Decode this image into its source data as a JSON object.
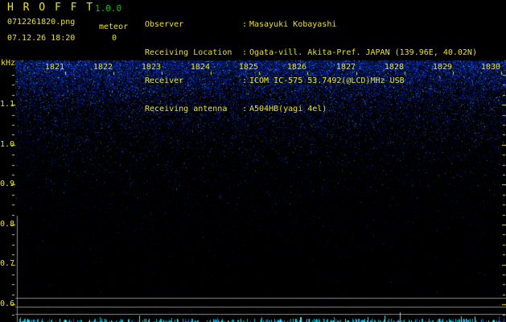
{
  "app": {
    "title": "H R O F F T",
    "version": "1.0.0"
  },
  "file": {
    "filename": "0712261820.png",
    "datetime": "07.12.26 18:20"
  },
  "counter": {
    "label": "meteor",
    "value": "0"
  },
  "station": {
    "sep": ":",
    "rows": [
      {
        "label": "Observer",
        "value": "Masayuki Kobayashi"
      },
      {
        "label": "Receiving Location",
        "value": "Ogata-vill. Akita-Pref. JAPAN (139.96E, 40.02N)"
      },
      {
        "label": "Receiver",
        "value": "ICOM IC-575 53.7492(@LCD)MHz USB"
      },
      {
        "label": "Receiving antenna",
        "value": "A504HB(yagi 4el)"
      }
    ]
  },
  "chart_data": {
    "type": "heatmap",
    "subtype": "radio meteor spectrogram (HROFFT 10-minute strip)",
    "title": "",
    "x_axis": {
      "label": "",
      "tick_labels": [
        "1821",
        "1822",
        "1823",
        "1824",
        "1825",
        "1826",
        "1827",
        "1828",
        "1829",
        "1830"
      ],
      "range": [
        "18:20",
        "18:30"
      ]
    },
    "y_axis": {
      "label": "kHz",
      "tick_labels": [
        "1.1",
        "1.0",
        "0.9",
        "0.8",
        "0.7",
        "0.6"
      ],
      "range_khz": [
        0.56,
        1.21
      ],
      "minor_tick_khz": 0.025
    },
    "content": "broadband blue background noise, densest at high frequency (top), fading to black toward 0.6 kHz; no meteor echo streaks visible",
    "meteor_count": 0,
    "grid": "three horizontal gray reference lines near bottom and vertical gray left border below 0.8 kHz",
    "bottom_trace": "cyan signal-level bar trace along bottom edge",
    "legend": "none"
  },
  "colors": {
    "background": "#000000",
    "text_yellow": "#f0e400",
    "version_green": "#00c800",
    "grid_gray": "#8a8a8a",
    "trace_cyan": "#00becd",
    "noise_blue": "#1a2fd0",
    "noise_cyan": "#28d2eb"
  }
}
